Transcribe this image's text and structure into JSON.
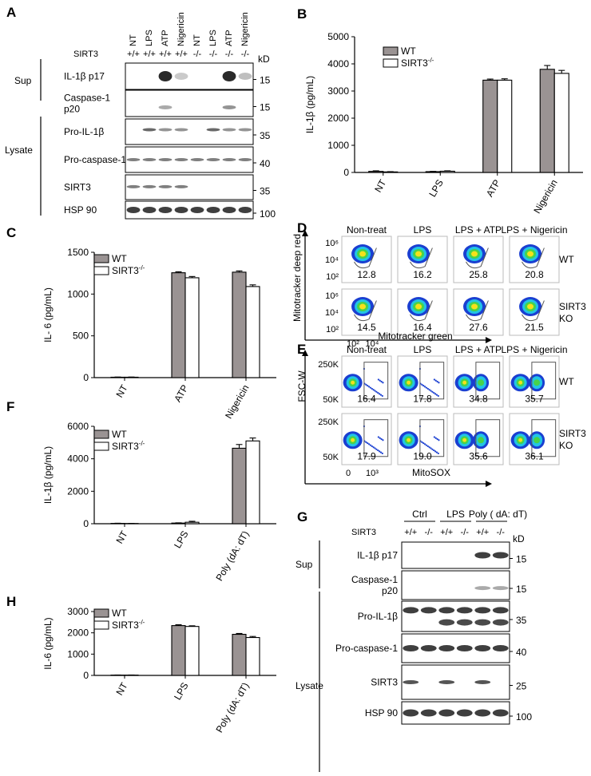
{
  "panel_labels": {
    "A": "A",
    "B": "B",
    "C": "C",
    "D": "D",
    "E": "E",
    "F": "F",
    "G": "G",
    "H": "H"
  },
  "blot_A": {
    "lanes": [
      "NT",
      "LPS",
      "ATP",
      "Nigericin",
      "NT",
      "LPS",
      "ATP",
      "Nigericin"
    ],
    "sirt3_label": "SIRT3",
    "genotypes": [
      "+/+",
      "+/+",
      "+/+",
      "+/+",
      "-/-",
      "-/-",
      "-/-",
      "-/-"
    ],
    "kd_label": "kD",
    "groups": [
      {
        "label": "Sup"
      },
      {
        "label": "Lysate"
      }
    ],
    "rows": [
      {
        "name": "IL-1β p17",
        "kd": "15"
      },
      {
        "name": "Caspase-1\np20",
        "kd": "15"
      },
      {
        "name": "Pro-IL-1β",
        "kd": "35"
      },
      {
        "name": "Pro-caspase-1",
        "kd": "40"
      },
      {
        "name": "SIRT3",
        "kd": "35"
      },
      {
        "name": "HSP 90",
        "kd": "100"
      }
    ]
  },
  "flow_D": {
    "conditions": [
      "Non-treat",
      "LPS",
      "LPS + ATP",
      "LPS + Nigericin"
    ],
    "rows": [
      "WT",
      "SIRT3\nKO"
    ],
    "values": [
      [
        "12.8",
        "16.2",
        "25.8",
        "20.8"
      ],
      [
        "14.5",
        "16.4",
        "27.6",
        "21.5"
      ]
    ],
    "y_label": "Mitotracker deep red",
    "x_label": "Mitotracker green",
    "y_ticks": [
      "10⁶",
      "10⁴",
      "10²"
    ],
    "x_ticks": [
      "10²",
      "10⁴"
    ]
  },
  "flow_E": {
    "conditions": [
      "Non-treat",
      "LPS",
      "LPS + ATP",
      "LPS + Nigericin"
    ],
    "rows": [
      "WT",
      "SIRT3\nKO"
    ],
    "values": [
      [
        "16.4",
        "17.8",
        "34.8",
        "35.7"
      ],
      [
        "17.9",
        "19.0",
        "35.6",
        "36.1"
      ]
    ],
    "y_label": "FSC-W",
    "x_label": "MitoSOX",
    "y_ticks": [
      "250K",
      "50K"
    ],
    "x_ticks": [
      "0",
      "10³"
    ]
  },
  "blot_G": {
    "groups": [
      "Ctrl",
      "LPS",
      "Poly ( dA: dT)"
    ],
    "sirt3_label": "SIRT3",
    "genotypes": [
      "+/+",
      "-/-",
      "+/+",
      "-/-",
      "+/+",
      "-/-"
    ],
    "kd_label": "kD",
    "side_groups": [
      {
        "label": "Sup"
      },
      {
        "label": "Lysate"
      }
    ],
    "rows": [
      {
        "name": "IL-1β p17",
        "kd": "15"
      },
      {
        "name": "Caspase-1\np20",
        "kd": "15"
      },
      {
        "name": "Pro-IL-1β",
        "kd": "35"
      },
      {
        "name": "Pro-caspase-1",
        "kd": "40"
      },
      {
        "name": "SIRT3",
        "kd": "25"
      },
      {
        "name": "HSP 90",
        "kd": "100"
      }
    ]
  },
  "chart_data": [
    {
      "id": "B",
      "type": "bar",
      "categories": [
        "NT",
        "LPS",
        "ATP",
        "Nigericin"
      ],
      "series": [
        {
          "name": "WT",
          "values": [
            40,
            30,
            3400,
            3800
          ],
          "errors": [
            20,
            10,
            40,
            140
          ]
        },
        {
          "name": "SIRT3-/-",
          "values": [
            20,
            45,
            3400,
            3650
          ],
          "errors": [
            10,
            15,
            50,
            110
          ]
        }
      ],
      "ylabel": "IL-1β (pg/mL)",
      "ylim": [
        0,
        5000
      ],
      "yticks": [
        0,
        1000,
        2000,
        3000,
        4000,
        5000
      ],
      "legend": "top-left"
    },
    {
      "id": "C",
      "type": "bar",
      "categories": [
        "NT",
        "ATP",
        "Nigericin"
      ],
      "series": [
        {
          "name": "WT",
          "values": [
            5,
            1255,
            1262
          ],
          "errors": [
            2,
            12,
            15
          ]
        },
        {
          "name": "SIRT3-/-",
          "values": [
            5,
            1195,
            1090
          ],
          "errors": [
            2,
            15,
            20
          ]
        }
      ],
      "ylabel": "IL- 6 (pg/mL)",
      "ylim": [
        0,
        1500
      ],
      "yticks": [
        0,
        500,
        1000,
        1500
      ],
      "legend": "top-left"
    },
    {
      "id": "F",
      "type": "bar",
      "categories": [
        "NT",
        "LPS",
        "Poly (dA: dT)"
      ],
      "series": [
        {
          "name": "WT",
          "values": [
            20,
            40,
            4650
          ],
          "errors": [
            10,
            15,
            230
          ]
        },
        {
          "name": "SIRT3-/-",
          "values": [
            15,
            90,
            5100
          ],
          "errors": [
            5,
            60,
            180
          ]
        }
      ],
      "ylabel": "IL-1β (pg/mL)",
      "ylim": [
        0,
        6000
      ],
      "yticks": [
        0,
        2000,
        4000,
        6000
      ],
      "legend": "top-left"
    },
    {
      "id": "H",
      "type": "bar",
      "categories": [
        "NT",
        "LPS",
        "Poly (dA: dT)"
      ],
      "series": [
        {
          "name": "WT",
          "values": [
            15,
            2340,
            1930
          ],
          "errors": [
            5,
            40,
            40
          ]
        },
        {
          "name": "SIRT3-/-",
          "values": [
            15,
            2300,
            1780
          ],
          "errors": [
            5,
            30,
            50
          ]
        }
      ],
      "ylabel": "IL-6 (pg/mL)",
      "ylim": [
        0,
        3000
      ],
      "yticks": [
        0,
        1000,
        2000,
        3000
      ],
      "legend": "top-left"
    }
  ],
  "legend_sup": "-/-",
  "colors": {
    "wt_bar": "#9a9393",
    "ko_bar": "#ffffff",
    "band": "#2a2a2a"
  }
}
